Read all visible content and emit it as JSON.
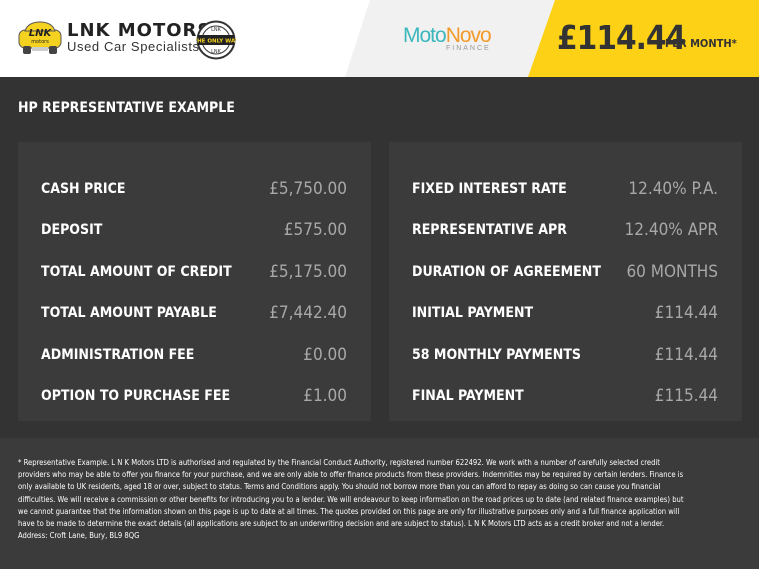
{
  "header": {
    "dealer": {
      "name": "LNK MOTORS",
      "tagline": "Used Car Specialists",
      "car_logo_text": "LNK",
      "badge_text": "THE ONLY WAY"
    },
    "lender": {
      "name_part1": "Moto",
      "name_part2": "Novo",
      "sub": "FINANCE"
    },
    "monthly_price": "£114.44",
    "per_month": "PER MONTH*"
  },
  "colors": {
    "accent": "#fcd116",
    "background": "#333333",
    "panel": "#3b3b3b",
    "value": "#a8a8a8"
  },
  "title": "HP REPRESENTATIVE EXAMPLE",
  "left_panel": [
    {
      "label": "CASH PRICE",
      "value": "£5,750.00"
    },
    {
      "label": "DEPOSIT",
      "value": "£575.00"
    },
    {
      "label": "TOTAL AMOUNT OF CREDIT",
      "value": "£5,175.00"
    },
    {
      "label": "TOTAL AMOUNT PAYABLE",
      "value": "£7,442.40"
    },
    {
      "label": "ADMINISTRATION FEE",
      "value": "£0.00"
    },
    {
      "label": "OPTION TO PURCHASE FEE",
      "value": "£1.00"
    }
  ],
  "right_panel": [
    {
      "label": "FIXED INTEREST RATE",
      "value": "12.40% P.A."
    },
    {
      "label": "REPRESENTATIVE APR",
      "value": "12.40% APR"
    },
    {
      "label": "DURATION OF AGREEMENT",
      "value": "60 MONTHS"
    },
    {
      "label": "INITIAL PAYMENT",
      "value": "£114.44"
    },
    {
      "label": "58 MONTHLY PAYMENTS",
      "value": "£114.44"
    },
    {
      "label": "FINAL PAYMENT",
      "value": "£115.44"
    }
  ],
  "disclaimer": "* Representative Example. L N K Motors LTD is authorised and regulated by the Financial Conduct Authority, registered number 622492. We work with a number of carefully selected credit providers who may be able to offer you finance for your purchase, and we are only able to offer finance products from these providers. Indemnities may be required by certain lenders. Finance is only available to UK residents, aged 18 or over, subject to status. Terms and Conditions apply. You should not borrow more than you can afford to repay as doing so can cause you financial difficulties. We will receive a commission or other benefits for introducing you to a lender. We will endeavour to keep information on the road prices up to date (and related finance examples) but we cannot guarantee that the information shown on this page is up to date at all times. The quotes provided on this page are only for illustrative purposes only and a full finance application will have to be made to determine the exact details (all applications are subject to an underwriting decision and are subject to status). L N K Motors LTD acts as a credit broker and not a lender. Address: Croft Lane, Bury, BL9 8QG"
}
